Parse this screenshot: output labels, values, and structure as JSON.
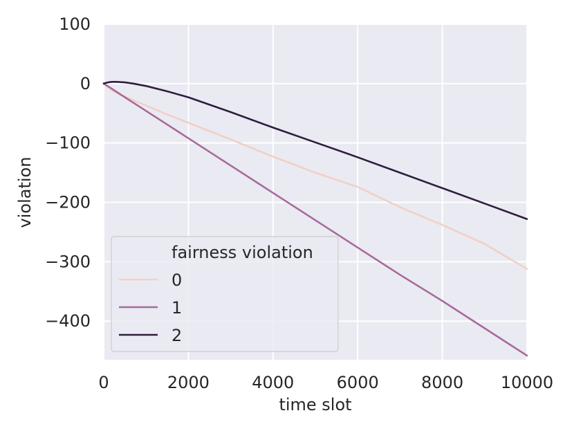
{
  "chart_data": {
    "type": "line",
    "title": "",
    "xlabel": "time slot",
    "ylabel": "violation",
    "xlim": [
      0,
      10000
    ],
    "ylim": [
      -465,
      100
    ],
    "xticks": [
      0,
      2000,
      4000,
      6000,
      8000,
      10000
    ],
    "yticks": [
      100,
      0,
      -100,
      -200,
      -300,
      -400
    ],
    "xtick_labels": [
      "0",
      "2000",
      "4000",
      "6000",
      "8000",
      "10000"
    ],
    "ytick_labels": [
      "100",
      "0",
      "−100",
      "−200",
      "−300",
      "−400"
    ],
    "grid": true,
    "background": "#eaeaf2",
    "legend": {
      "title": "fairness violation",
      "placement": "lower-left",
      "entries": [
        "0",
        "1",
        "2"
      ]
    },
    "series": [
      {
        "name": "0",
        "color": "#f1d0c6",
        "x": [
          0,
          100,
          200,
          400,
          600,
          800,
          1000,
          1500,
          2000,
          3000,
          4000,
          5000,
          6000,
          7000,
          8000,
          9000,
          10000
        ],
        "y": [
          0,
          -6,
          -12,
          -19,
          -25,
          -31,
          -37,
          -52,
          -66,
          -94,
          -123,
          -150,
          -174,
          -208,
          -238,
          -270,
          -312
        ]
      },
      {
        "name": "1",
        "color": "#a86a99",
        "x": [
          0,
          200,
          500,
          1000,
          2000,
          3000,
          4000,
          5000,
          6000,
          7000,
          8000,
          9000,
          10000
        ],
        "y": [
          0,
          -9,
          -23,
          -46,
          -92,
          -138,
          -184,
          -230,
          -276,
          -322,
          -366,
          -412,
          -458
        ]
      },
      {
        "name": "2",
        "color": "#2d1e3e",
        "x": [
          0,
          100,
          200,
          300,
          500,
          700,
          1000,
          1500,
          2000,
          3000,
          4000,
          5000,
          6000,
          7000,
          8000,
          9000,
          10000
        ],
        "y": [
          0,
          2,
          3,
          3,
          2,
          0,
          -4,
          -13,
          -23,
          -48,
          -74,
          -99,
          -124,
          -150,
          -176,
          -202,
          -228
        ]
      }
    ]
  }
}
